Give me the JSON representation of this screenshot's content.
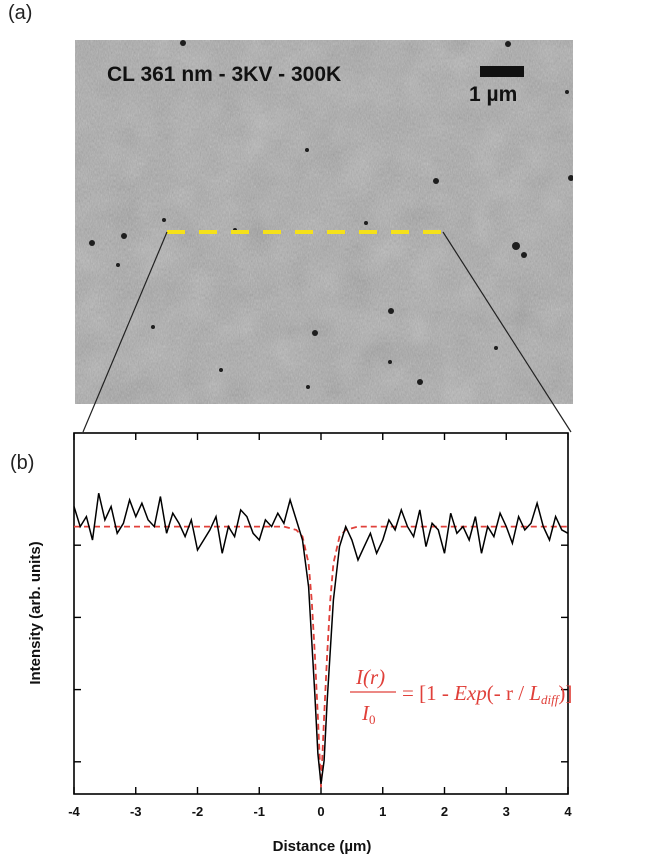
{
  "panel_labels": {
    "a": "(a)",
    "b": "(b)"
  },
  "image": {
    "title": "CL 361 nm - 3KV - 300K",
    "scale_bar_label": "1 µm",
    "line_color": "#f5e11a",
    "background_gray": "#a8a8a8"
  },
  "colors": {
    "data": "#000000",
    "fit": "#e0403a"
  },
  "formula": {
    "numerator": "I(r)",
    "denominator": "I",
    "denominator_sub": "0",
    "rhs_start": "= [1 - ",
    "exp": "Exp",
    "rhs_mid": "(- r / ",
    "L": "L",
    "L_sub": "diff",
    "rhs_end": ")]"
  },
  "chart_data": {
    "type": "line",
    "xlabel": "Distance (µm)",
    "ylabel": "Intensity (arb. units)",
    "xlim": [
      -4,
      4
    ],
    "ylim": [
      0,
      1.08
    ],
    "x_ticks": [
      "-4",
      "-3",
      "-2",
      "-1",
      "0",
      "1",
      "2",
      "3",
      "4"
    ],
    "grid": false,
    "series": [
      {
        "x": [
          -4.0,
          -3.9,
          -3.8,
          -3.7,
          -3.6,
          -3.5,
          -3.4,
          -3.3,
          -3.2,
          -3.1,
          -3.0,
          -2.9,
          -2.8,
          -2.7,
          -2.6,
          -2.5,
          -2.4,
          -2.3,
          -2.2,
          -2.1,
          -2.0,
          -1.9,
          -1.8,
          -1.7,
          -1.6,
          -1.5,
          -1.4,
          -1.3,
          -1.2,
          -1.1,
          -1.0,
          -0.9,
          -0.8,
          -0.7,
          -0.6,
          -0.5,
          -0.4,
          -0.3,
          -0.2,
          -0.1,
          -0.05,
          0.0,
          0.05,
          0.1,
          0.2,
          0.3,
          0.4,
          0.5,
          0.6,
          0.7,
          0.8,
          0.9,
          1.0,
          1.1,
          1.2,
          1.3,
          1.4,
          1.5,
          1.6,
          1.7,
          1.8,
          1.9,
          2.0,
          2.1,
          2.2,
          2.3,
          2.4,
          2.5,
          2.6,
          2.7,
          2.8,
          2.9,
          3.0,
          3.1,
          3.2,
          3.3,
          3.4,
          3.5,
          3.6,
          3.7,
          3.8,
          3.9,
          4.0
        ],
        "y": [
          0.86,
          0.8,
          0.83,
          0.76,
          0.9,
          0.82,
          0.86,
          0.78,
          0.81,
          0.88,
          0.83,
          0.87,
          0.82,
          0.8,
          0.89,
          0.78,
          0.84,
          0.81,
          0.77,
          0.82,
          0.73,
          0.76,
          0.79,
          0.83,
          0.72,
          0.8,
          0.77,
          0.85,
          0.83,
          0.78,
          0.76,
          0.82,
          0.8,
          0.84,
          0.81,
          0.88,
          0.82,
          0.76,
          0.62,
          0.3,
          0.12,
          0.03,
          0.1,
          0.28,
          0.58,
          0.74,
          0.8,
          0.76,
          0.7,
          0.74,
          0.78,
          0.72,
          0.76,
          0.82,
          0.79,
          0.85,
          0.8,
          0.77,
          0.85,
          0.74,
          0.81,
          0.79,
          0.72,
          0.84,
          0.78,
          0.8,
          0.76,
          0.83,
          0.72,
          0.8,
          0.77,
          0.84,
          0.8,
          0.75,
          0.83,
          0.79,
          0.81,
          0.87,
          0.8,
          0.76,
          0.83,
          0.79,
          0.78
        ]
      },
      {
        "x": [
          -4.0,
          -1.0,
          -0.6,
          -0.4,
          -0.3,
          -0.2,
          -0.15,
          -0.1,
          -0.05,
          0.0,
          0.05,
          0.1,
          0.15,
          0.2,
          0.3,
          0.4,
          0.6,
          1.0,
          4.0
        ],
        "y": [
          0.8,
          0.8,
          0.8,
          0.79,
          0.77,
          0.69,
          0.58,
          0.42,
          0.23,
          0.02,
          0.23,
          0.42,
          0.58,
          0.69,
          0.77,
          0.79,
          0.8,
          0.8,
          0.8
        ]
      }
    ]
  }
}
